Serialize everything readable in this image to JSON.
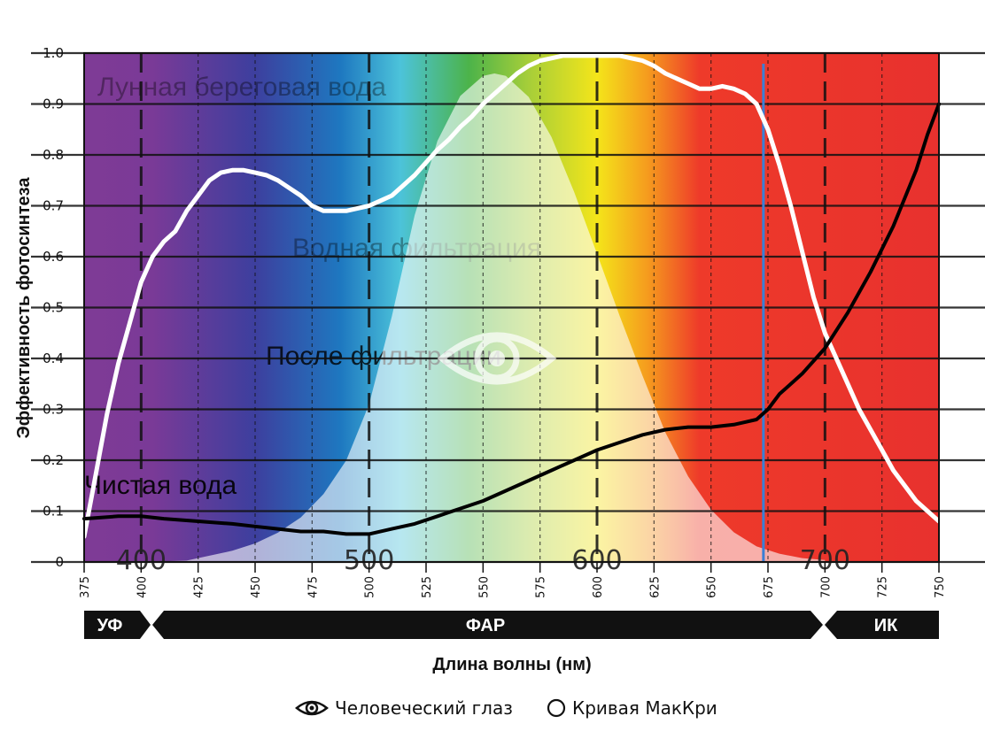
{
  "chart_data": {
    "type": "line",
    "ylabel": "Эффективность фотосинтеза",
    "xlabel": "Длина волны (нм)",
    "xlim": [
      375,
      750
    ],
    "ylim": [
      0,
      1.0
    ],
    "x_ticks": [
      375,
      400,
      425,
      450,
      475,
      500,
      525,
      550,
      575,
      600,
      625,
      650,
      675,
      700,
      725,
      750
    ],
    "y_ticks": [
      "0",
      "0.1",
      "0.2",
      "0.3",
      "0.4",
      "0.5",
      "0.6",
      "0.7",
      "0.8",
      "0.9",
      "1.0"
    ],
    "big_ticks": [
      "400",
      "500",
      "600",
      "700"
    ],
    "grid": true,
    "bands": [
      {
        "label": "УФ",
        "from": 375,
        "to": 400
      },
      {
        "label": "ФАР",
        "from": 400,
        "to": 700
      },
      {
        "label": "ИК",
        "from": 700,
        "to": 750
      }
    ],
    "marker_line": {
      "x": 673,
      "color": "#3a7fd5"
    },
    "overlay_texts": [
      "Лунная береговая вода",
      "Водная фильтрация",
      "После фильтрации",
      "Чистая вода"
    ],
    "series": [
      {
        "name": "Кривая МакКри",
        "color": "#ffffff",
        "x": [
          375,
          380,
          385,
          390,
          395,
          400,
          405,
          410,
          415,
          420,
          425,
          430,
          435,
          440,
          445,
          450,
          455,
          460,
          465,
          470,
          475,
          480,
          485,
          490,
          495,
          500,
          505,
          510,
          515,
          520,
          525,
          530,
          535,
          540,
          545,
          550,
          555,
          560,
          565,
          570,
          575,
          580,
          585,
          590,
          595,
          600,
          605,
          610,
          615,
          620,
          625,
          630,
          635,
          640,
          645,
          650,
          655,
          660,
          665,
          670,
          675,
          680,
          685,
          690,
          695,
          700,
          705,
          710,
          715,
          720,
          725,
          730,
          735,
          740,
          745,
          750
        ],
        "y": [
          0.05,
          0.17,
          0.29,
          0.39,
          0.47,
          0.55,
          0.6,
          0.63,
          0.65,
          0.69,
          0.72,
          0.75,
          0.765,
          0.77,
          0.77,
          0.765,
          0.76,
          0.75,
          0.735,
          0.72,
          0.7,
          0.69,
          0.69,
          0.69,
          0.695,
          0.7,
          0.71,
          0.72,
          0.74,
          0.76,
          0.785,
          0.81,
          0.83,
          0.855,
          0.875,
          0.9,
          0.92,
          0.94,
          0.96,
          0.975,
          0.985,
          0.99,
          0.995,
          0.995,
          0.995,
          0.995,
          0.995,
          0.995,
          0.99,
          0.985,
          0.975,
          0.96,
          0.95,
          0.94,
          0.93,
          0.93,
          0.935,
          0.93,
          0.92,
          0.9,
          0.85,
          0.78,
          0.7,
          0.61,
          0.52,
          0.45,
          0.4,
          0.35,
          0.3,
          0.26,
          0.22,
          0.18,
          0.15,
          0.12,
          0.1,
          0.08
        ]
      },
      {
        "name": "Чистая вода",
        "color": "#000000",
        "x": [
          375,
          390,
          400,
          410,
          425,
          440,
          450,
          460,
          470,
          480,
          490,
          500,
          510,
          520,
          530,
          540,
          550,
          560,
          570,
          580,
          590,
          600,
          610,
          620,
          630,
          640,
          650,
          660,
          665,
          670,
          675,
          680,
          690,
          700,
          710,
          720,
          730,
          740,
          745,
          750
        ],
        "y": [
          0.085,
          0.09,
          0.09,
          0.085,
          0.08,
          0.075,
          0.07,
          0.065,
          0.06,
          0.06,
          0.055,
          0.055,
          0.065,
          0.075,
          0.09,
          0.105,
          0.12,
          0.14,
          0.16,
          0.18,
          0.2,
          0.22,
          0.235,
          0.25,
          0.26,
          0.265,
          0.265,
          0.27,
          0.275,
          0.28,
          0.3,
          0.33,
          0.37,
          0.42,
          0.49,
          0.57,
          0.66,
          0.77,
          0.84,
          0.9
        ]
      },
      {
        "name": "Человеческий глаз",
        "color": "rgba(255,255,255,0.6)",
        "x": [
          375,
          400,
          420,
          440,
          450,
          460,
          470,
          480,
          490,
          500,
          510,
          520,
          530,
          540,
          550,
          555,
          560,
          570,
          580,
          590,
          600,
          610,
          620,
          630,
          640,
          650,
          660,
          670,
          680,
          690,
          700
        ],
        "y": [
          0.0,
          0.0,
          0.003,
          0.023,
          0.038,
          0.06,
          0.091,
          0.139,
          0.208,
          0.323,
          0.503,
          0.71,
          0.862,
          0.954,
          0.995,
          1.0,
          0.995,
          0.952,
          0.87,
          0.757,
          0.631,
          0.503,
          0.381,
          0.265,
          0.175,
          0.107,
          0.061,
          0.032,
          0.017,
          0.008,
          0.004
        ]
      }
    ]
  },
  "legend": [
    {
      "icon": "eye-icon",
      "label": "Человеческий глаз"
    },
    {
      "icon": "circle-icon",
      "label": "Кривая МакКри"
    }
  ]
}
